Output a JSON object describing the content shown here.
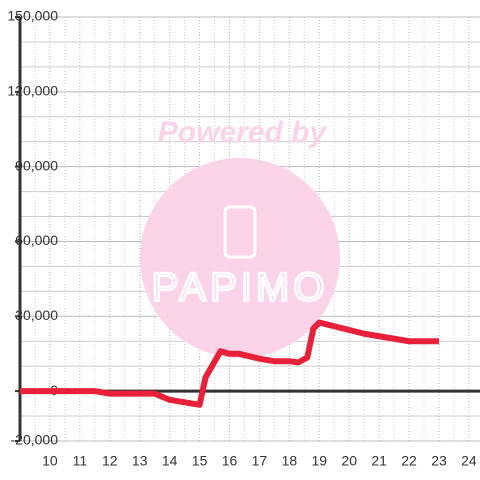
{
  "chart_data": {
    "type": "line",
    "watermark": {
      "title": "Powered by",
      "brand": "PAPIMO"
    },
    "x": [
      9,
      11.5,
      12,
      13.5,
      14,
      15,
      15.2,
      15.7,
      16,
      16.3,
      17,
      17.5,
      18,
      18.3,
      18.6,
      18.8,
      19,
      19.5,
      20,
      20.5,
      21,
      21.5,
      22,
      23
    ],
    "series": [
      {
        "color": "#e8213a",
        "values": [
          0,
          0,
          -1000,
          -1000,
          -3500,
          -5500,
          5500,
          16000,
          15000,
          15000,
          13000,
          12000,
          12000,
          11500,
          13500,
          25000,
          27500,
          26000,
          24500,
          23000,
          22000,
          21000,
          20000,
          20000
        ]
      }
    ],
    "xlim": [
      9,
      24.37
    ],
    "xticks": [
      10,
      11,
      12,
      13,
      14,
      15,
      16,
      17,
      18,
      19,
      20,
      21,
      22,
      23,
      24
    ],
    "xgrid": [
      9.5,
      10.5,
      11.5,
      12.5,
      13.5,
      14.5,
      15.5,
      16.5,
      17.5,
      18.5,
      19.5,
      20.5,
      21.5,
      22.5,
      23.5
    ],
    "ylim": [
      -20000,
      150000
    ],
    "yticks": [
      {
        "value": -20000,
        "label": "-20,000"
      },
      0,
      {
        "value": 30000,
        "label": "30,000"
      },
      {
        "value": 60000,
        "label": "60,000"
      },
      {
        "value": 90000,
        "label": "90,000"
      },
      {
        "value": 120000,
        "label": "120,000"
      },
      {
        "value": 150000,
        "label": "150,000"
      }
    ],
    "ygrid": [
      -10000,
      10000,
      20000,
      40000,
      50000,
      70000,
      80000,
      100000,
      110000,
      130000,
      140000
    ],
    "grid": true
  }
}
